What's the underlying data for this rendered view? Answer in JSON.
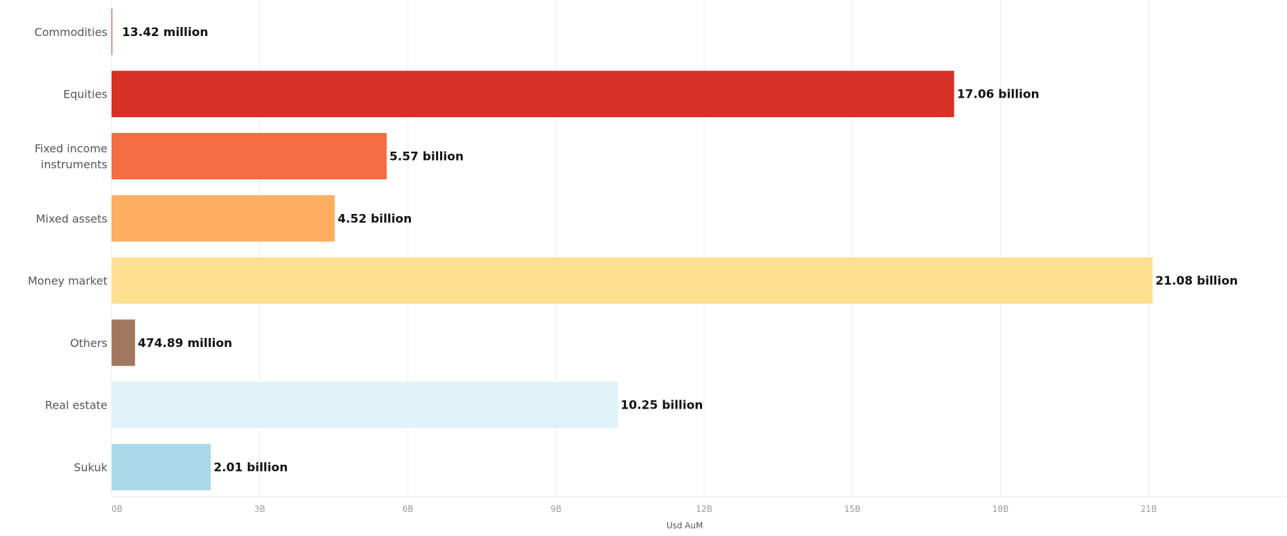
{
  "chart_data": {
    "type": "bar",
    "orientation": "horizontal",
    "categories": [
      "Commodities",
      "Equities",
      "Fixed income instruments",
      "Mixed assets",
      "Money market",
      "Others",
      "Real estate",
      "Sukuk"
    ],
    "category_lines": [
      [
        "Commodities"
      ],
      [
        "Equities"
      ],
      [
        "Fixed income",
        "instruments"
      ],
      [
        "Mixed assets"
      ],
      [
        "Money market"
      ],
      [
        "Others"
      ],
      [
        "Real estate"
      ],
      [
        "Sukuk"
      ]
    ],
    "values": [
      0.01342,
      17.06,
      5.57,
      4.52,
      21.08,
      0.47489,
      10.25,
      2.01
    ],
    "value_labels": [
      "13.42 million",
      "17.06 billion",
      "5.57 billion",
      "4.52 billion",
      "21.08 billion",
      "474.89 million",
      "10.25 billion",
      "2.01 billion"
    ],
    "colors": [
      "#d73027",
      "#d73027",
      "#f46d43",
      "#fdae61",
      "#fee090",
      "#a0785e",
      "#e0f3f8",
      "#abd9e9"
    ],
    "xlabel": "Usd AuM",
    "xlim": [
      0,
      23.8
    ],
    "x_ticks": [
      0,
      3,
      6,
      9,
      12,
      15,
      18,
      21
    ],
    "x_tick_labels": [
      "0B",
      "3B",
      "6B",
      "9B",
      "12B",
      "15B",
      "18B",
      "21B"
    ],
    "grid": true,
    "legend": "none"
  }
}
